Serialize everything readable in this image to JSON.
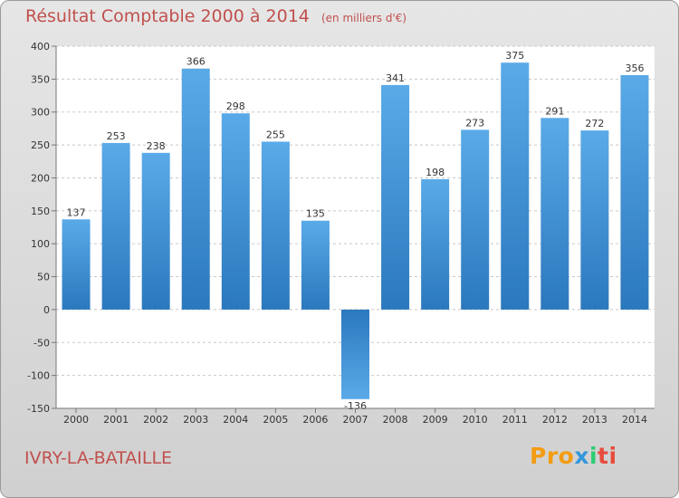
{
  "title": "Résultat Comptable 2000 à 2014",
  "unit": "(en milliers d'€)",
  "commune": "IVRY-LA-BATAILLE",
  "logo": {
    "part1": "Pro",
    "part2": "x",
    "part3": "i",
    "part4": "ti"
  },
  "colors": {
    "bar": "#3c8fd4",
    "bar_light": "#5aaae8",
    "bar_dark": "#2b78bd",
    "title": "#c0504d"
  },
  "chart_data": {
    "type": "bar",
    "title": "Résultat Comptable 2000 à 2014",
    "xlabel": "",
    "ylabel": "",
    "ylim": [
      -150,
      400
    ],
    "yticks": [
      -150,
      -100,
      -50,
      0,
      50,
      100,
      150,
      200,
      250,
      300,
      350,
      400
    ],
    "grid": true,
    "categories": [
      "2000",
      "2001",
      "2002",
      "2003",
      "2004",
      "2005",
      "2006",
      "2007",
      "2008",
      "2009",
      "2010",
      "2011",
      "2012",
      "2013",
      "2014"
    ],
    "values": [
      137,
      253,
      238,
      366,
      298,
      255,
      135,
      -136,
      341,
      198,
      273,
      375,
      291,
      272,
      356
    ]
  }
}
